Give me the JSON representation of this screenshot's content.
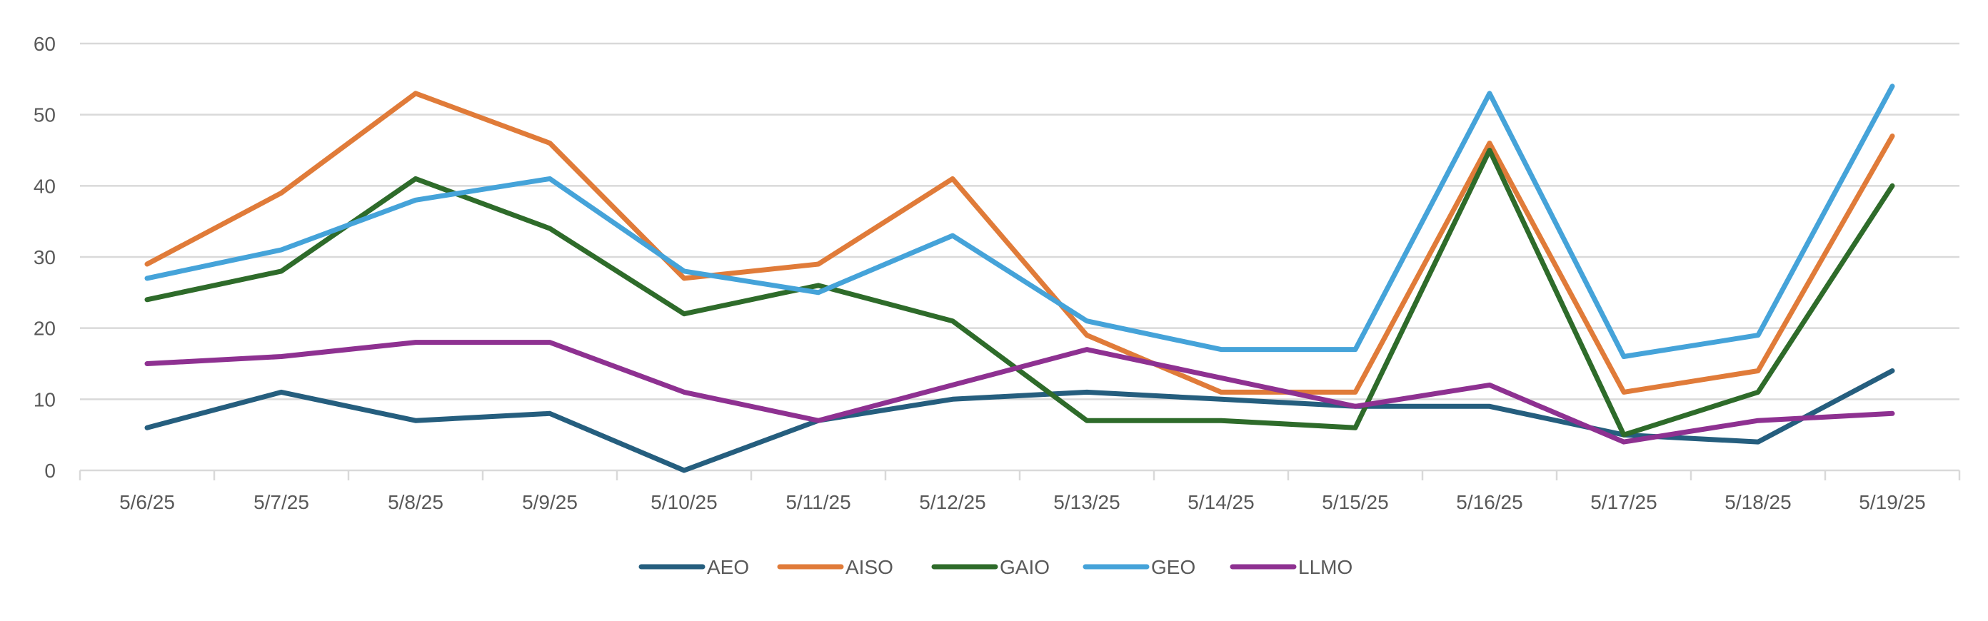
{
  "chart_data": {
    "type": "line",
    "title": "",
    "xlabel": "",
    "ylabel": "",
    "ylim": [
      0,
      60
    ],
    "yticks": [
      0,
      10,
      20,
      30,
      40,
      50,
      60
    ],
    "grid": true,
    "legend_position": "bottom",
    "categories": [
      "5/6/25",
      "5/7/25",
      "5/8/25",
      "5/9/25",
      "5/10/25",
      "5/11/25",
      "5/12/25",
      "5/13/25",
      "5/14/25",
      "5/15/25",
      "5/16/25",
      "5/17/25",
      "5/18/25",
      "5/19/25"
    ],
    "series": [
      {
        "name": "AEO",
        "color": "#255E7E",
        "values": [
          6,
          11,
          7,
          8,
          0,
          7,
          10,
          11,
          10,
          9,
          9,
          5,
          4,
          14
        ]
      },
      {
        "name": "AISO",
        "color": "#E07B39",
        "values": [
          29,
          39,
          53,
          46,
          27,
          29,
          41,
          19,
          11,
          11,
          46,
          11,
          14,
          47
        ]
      },
      {
        "name": "GAIO",
        "color": "#2E6B2A",
        "values": [
          24,
          28,
          41,
          34,
          22,
          26,
          21,
          7,
          7,
          6,
          45,
          5,
          11,
          40
        ]
      },
      {
        "name": "GEO",
        "color": "#45A3D9",
        "values": [
          27,
          31,
          38,
          41,
          28,
          25,
          33,
          21,
          17,
          17,
          53,
          16,
          19,
          54
        ]
      },
      {
        "name": "LLMO",
        "color": "#8E3191",
        "values": [
          15,
          16,
          18,
          18,
          11,
          7,
          12,
          17,
          13,
          9,
          12,
          4,
          7,
          8
        ]
      }
    ]
  }
}
